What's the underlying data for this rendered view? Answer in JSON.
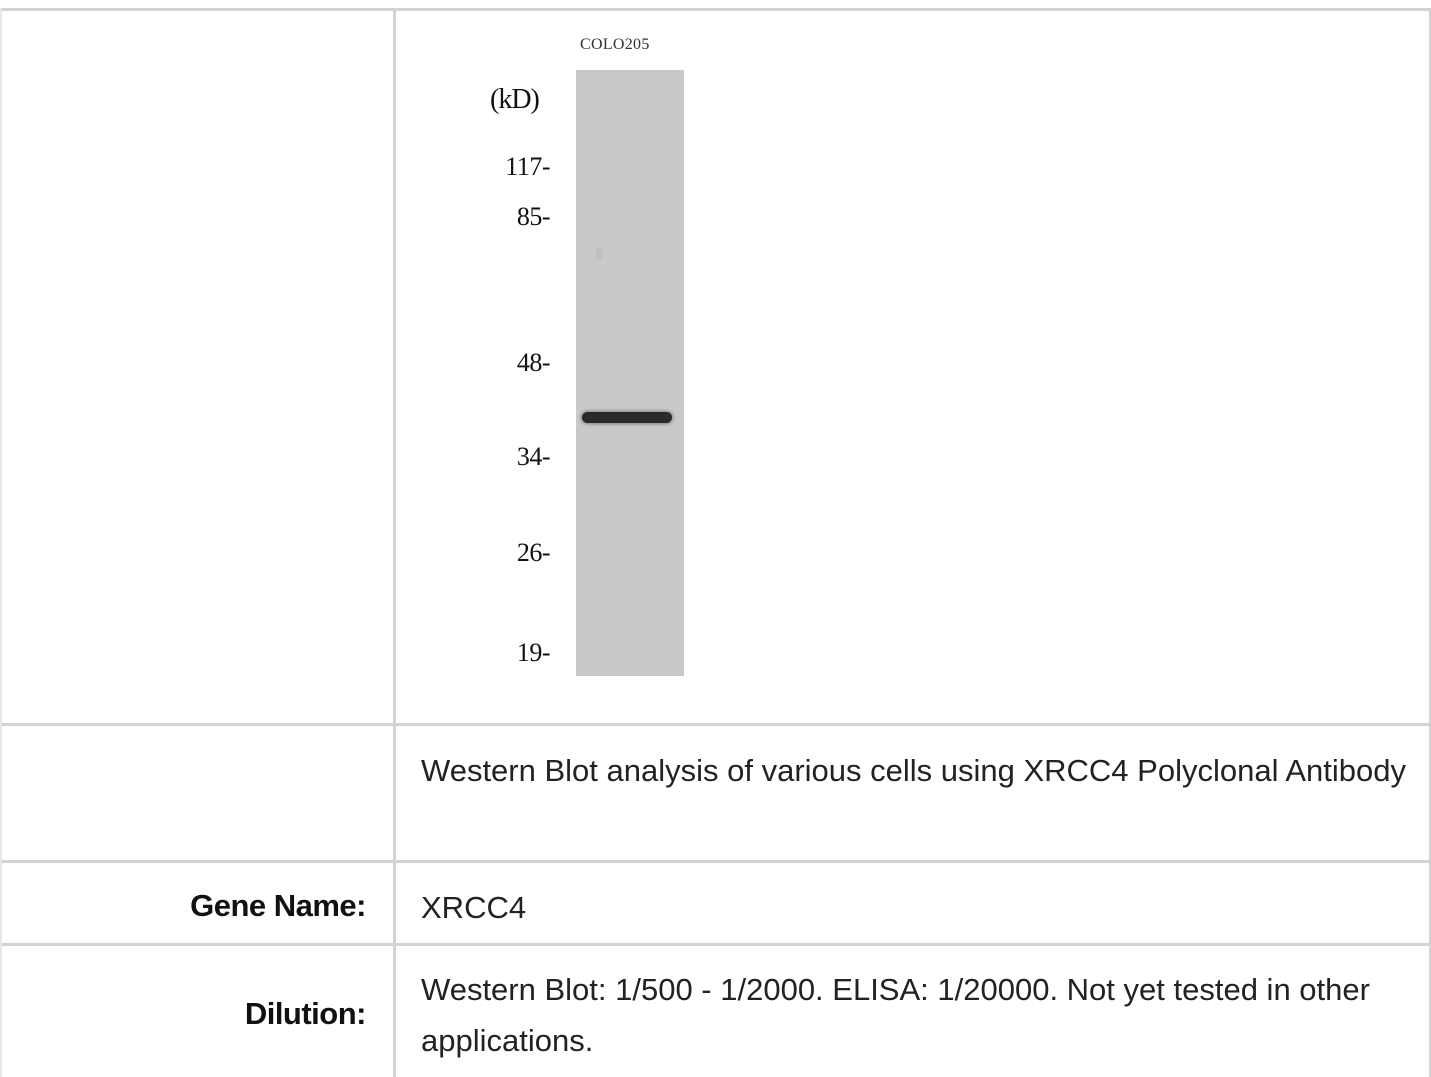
{
  "blot_figure": {
    "lane_label": "COLO205",
    "unit_label": "(kD)",
    "markers": [
      "117-",
      "85-",
      "48-",
      "34-",
      "26-",
      "19-"
    ]
  },
  "rows": {
    "caption": {
      "label": "",
      "value": "Western Blot analysis of various cells using XRCC4 Polyclonal Antibody"
    },
    "gene_name": {
      "label": "Gene Name:",
      "value": "XRCC4"
    },
    "dilution": {
      "label": "Dilution:",
      "value": "Western Blot: 1/500 - 1/2000. ELISA: 1/20000. Not yet tested in other applications."
    }
  },
  "colors": {
    "grid_line": "#d3d3d3",
    "lane_background": "#c9c9c9",
    "band": "#2a2a2a"
  }
}
